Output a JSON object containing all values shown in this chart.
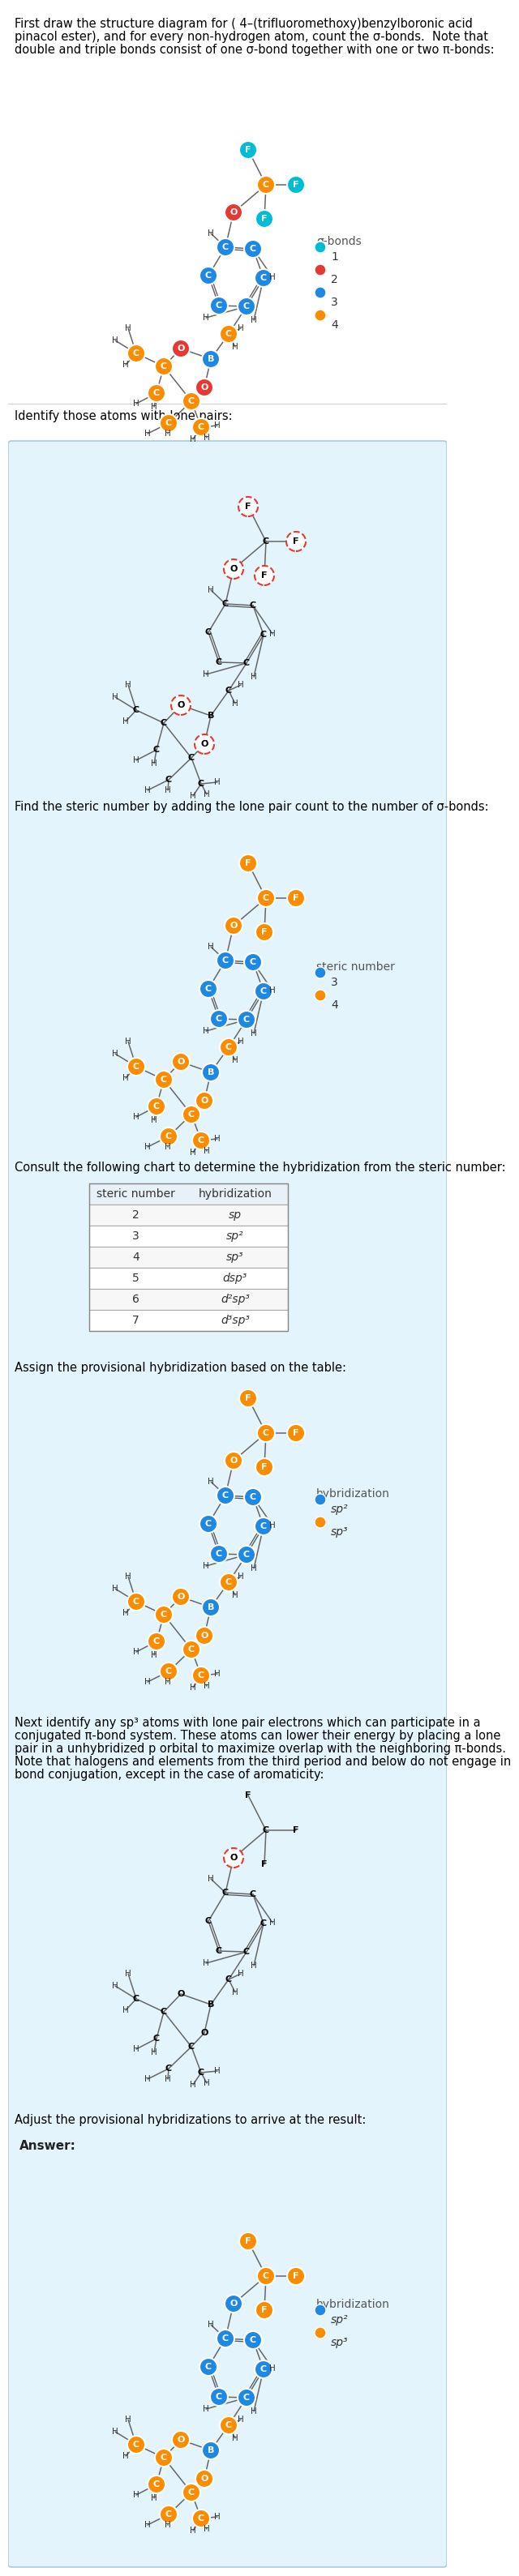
{
  "C_CYAN": "#00bcd4",
  "C_RED": "#e53935",
  "C_BLUE": "#1e88e5",
  "C_ORANGE": "#fb8c00",
  "C_GRAY": "#555555",
  "bg_answer": "#e3f4fc",
  "section_texts": [
    "First draw the structure diagram for ( 4–(trifluoromethoxy)benzylboronic acid pinacol ester), and for every non-hydrogen atom, count the σ-bonds.  Note that double and triple bonds consist of one σ-bond together with one or two π-bonds:",
    "Identify those atoms with lone pairs:",
    "Find the steric number by adding the lone pair count to the number of σ-bonds:",
    "Consult the following chart to determine the hybridization from the steric number:",
    "Assign the provisional hybridization based on the table:",
    "Next identify any sp³ atoms with lone pair electrons which can participate in a conjugated π-bond system. These atoms can lower their energy by placing a lone pair in a unhybridized p orbital to maximize overlap with the neighboring π-bonds. Note that halogens and elements from the third period and below do not engage in bond conjugation, except in the case of aromaticity:",
    "Adjust the provisional hybridizations to arrive at the result:"
  ],
  "table": [
    [
      2,
      "sp"
    ],
    [
      3,
      "sp²"
    ],
    [
      4,
      "sp³"
    ],
    [
      5,
      "dsp³"
    ],
    [
      6,
      "d²sp³"
    ],
    [
      7,
      "d³sp³"
    ]
  ],
  "table_headers": [
    "steric number",
    "hybridization"
  ]
}
